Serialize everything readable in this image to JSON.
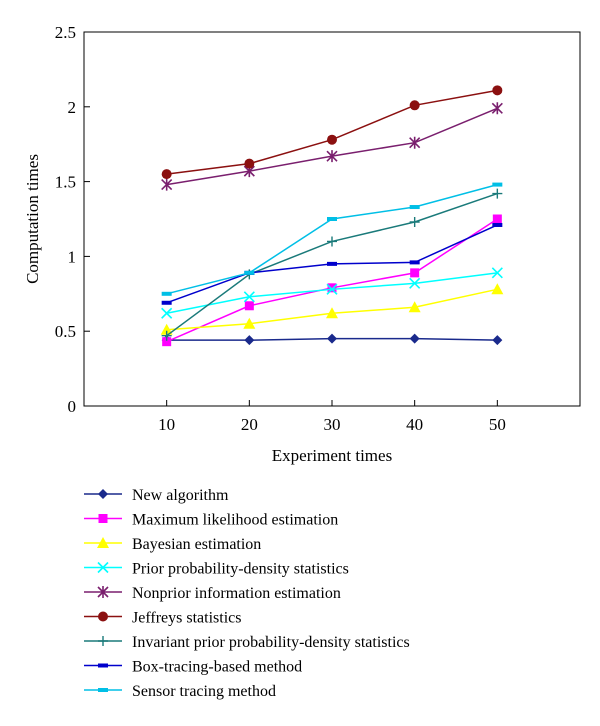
{
  "chart_data": {
    "type": "line",
    "xlabel": "Experiment times",
    "ylabel": "Computation times",
    "x": [
      10,
      20,
      30,
      40,
      50
    ],
    "xlim": [
      0,
      60
    ],
    "ylim": [
      0,
      2.5
    ],
    "yticks": [
      0,
      0.5,
      1,
      1.5,
      2,
      2.5
    ],
    "ytick_labels": [
      "0",
      "0.5",
      "1",
      "1.5",
      "2",
      "2.5"
    ],
    "xticks": [
      10,
      20,
      30,
      40,
      50
    ],
    "xtick_labels": [
      "10",
      "20",
      "30",
      "40",
      "50"
    ],
    "grid": false,
    "legend_position": "bottom",
    "series": [
      {
        "name": "New algorithm",
        "color": "#1a2a8c",
        "marker": "diamond",
        "values": [
          0.44,
          0.44,
          0.45,
          0.45,
          0.44
        ]
      },
      {
        "name": "Maximum likelihood estimation",
        "color": "#ff00ff",
        "marker": "square",
        "values": [
          0.43,
          0.67,
          0.79,
          0.89,
          1.25
        ]
      },
      {
        "name": "Bayesian estimation",
        "color": "#ffff00",
        "marker": "triangle",
        "values": [
          0.51,
          0.55,
          0.62,
          0.66,
          0.78
        ]
      },
      {
        "name": "Prior probability-density statistics",
        "color": "#00ffff",
        "marker": "x",
        "values": [
          0.62,
          0.73,
          0.78,
          0.82,
          0.89
        ]
      },
      {
        "name": "Nonprior information estimation",
        "color": "#7a1f6e",
        "marker": "star",
        "values": [
          1.48,
          1.57,
          1.67,
          1.76,
          1.99
        ]
      },
      {
        "name": "Jeffreys statistics",
        "color": "#8b1010",
        "marker": "circle",
        "values": [
          1.55,
          1.62,
          1.78,
          2.01,
          2.11
        ]
      },
      {
        "name": "Invariant prior probability-density statistics",
        "color": "#1a7a7a",
        "marker": "plus",
        "values": [
          0.47,
          0.88,
          1.1,
          1.23,
          1.42
        ]
      },
      {
        "name": "Box-tracing-based method",
        "color": "#0000cc",
        "marker": "dash",
        "values": [
          0.69,
          0.89,
          0.95,
          0.96,
          1.21
        ]
      },
      {
        "name": "Sensor tracing method",
        "color": "#00bfe6",
        "marker": "dash",
        "values": [
          0.75,
          0.89,
          1.25,
          1.33,
          1.48
        ]
      }
    ]
  }
}
